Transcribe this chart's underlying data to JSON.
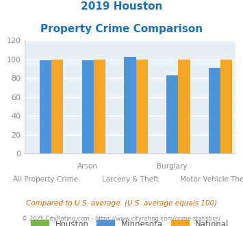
{
  "title_line1": "2019 Houston",
  "title_line2": "Property Crime Comparison",
  "title_color": "#1a6fba",
  "categories": [
    "All Property Crime",
    "Arson",
    "Larceny & Theft",
    "Burglary",
    "Motor Vehicle Theft"
  ],
  "categories_top": [
    "",
    "Arson",
    "",
    "Burglary",
    ""
  ],
  "categories_bottom": [
    "All Property Crime",
    "",
    "Larceny & Theft",
    "",
    "Motor Vehicle Theft"
  ],
  "houston_values": [
    0,
    0,
    0,
    0,
    0
  ],
  "minnesota_values": [
    99,
    99,
    103,
    83,
    91
  ],
  "national_values": [
    100,
    100,
    100,
    100,
    100
  ],
  "houston_color": "#7ab648",
  "minnesota_color": "#4d94db",
  "national_color": "#f5a623",
  "ylim": [
    0,
    120
  ],
  "yticks": [
    0,
    20,
    40,
    60,
    80,
    100,
    120
  ],
  "legend_labels": [
    "Houston",
    "Minnesota",
    "National"
  ],
  "footnote1": "Compared to U.S. average. (U.S. average equals 100)",
  "footnote2": "© 2025 CityRating.com - https://www.cityrating.com/crime-statistics/",
  "bg_color": "#e8f0f5",
  "grid_color": "#ffffff",
  "bar_width": 0.28
}
